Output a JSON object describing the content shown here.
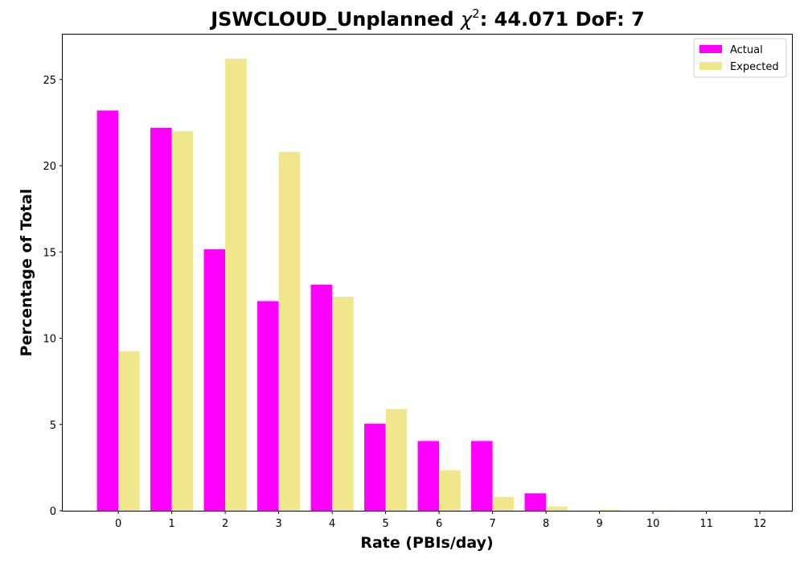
{
  "chart_data": {
    "type": "bar",
    "title_prefix": "JSWCLOUD_Unplanned ",
    "title_symbol": "χ",
    "title_superscript": "2",
    "title_suffix": ": 44.071 DoF: 7",
    "xlabel": "Rate (PBIs/day)",
    "ylabel": "Percentage of Total",
    "categories": [
      "0",
      "1",
      "2",
      "3",
      "4",
      "5",
      "6",
      "7",
      "8",
      "9",
      "10",
      "11",
      "12"
    ],
    "x": [
      0,
      1,
      2,
      3,
      4,
      5,
      6,
      7,
      8,
      9,
      10,
      11,
      12
    ],
    "xlim": [
      -1.04,
      12.6
    ],
    "ylim": [
      0,
      27.6
    ],
    "yticks": [
      0,
      5,
      10,
      15,
      20,
      25
    ],
    "grid": false,
    "legend_position": "top-right",
    "series": [
      {
        "name": "Actual",
        "color": "#ff00ff",
        "values": [
          23.2,
          22.2,
          15.15,
          12.15,
          13.1,
          5.05,
          4.04,
          4.04,
          1.01,
          0,
          0,
          0,
          0
        ]
      },
      {
        "name": "Expected",
        "color": "#f0e68c",
        "values": [
          9.25,
          22.0,
          26.2,
          20.8,
          12.4,
          5.9,
          2.35,
          0.8,
          0.24,
          0.06,
          0.015,
          0.003,
          0.0005
        ]
      }
    ]
  }
}
